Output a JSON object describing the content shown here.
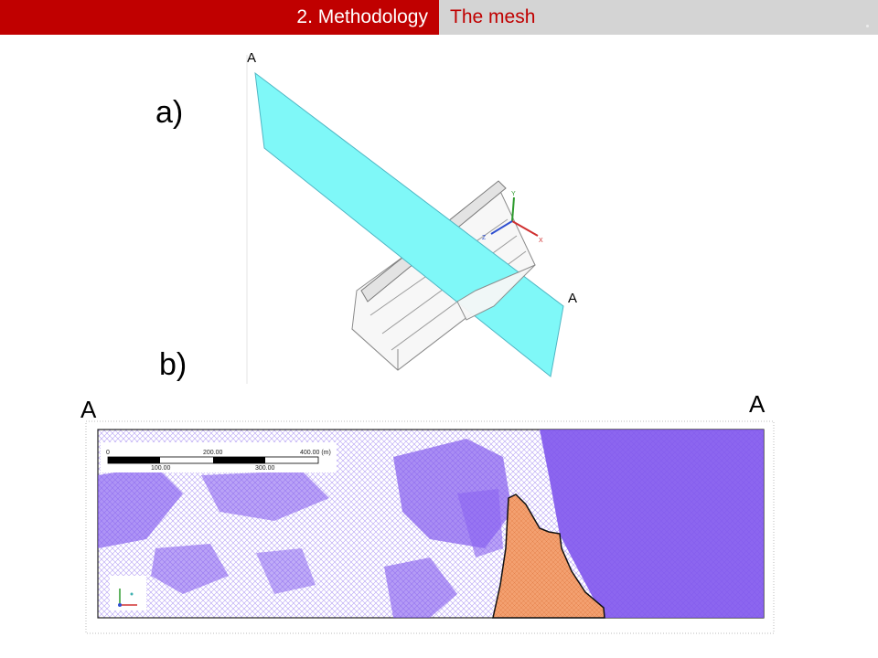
{
  "header": {
    "section": "2. Methodology",
    "subtitle": "The mesh"
  },
  "panels": {
    "a_label": "a)",
    "b_label": "b)"
  },
  "section_markers": {
    "top_start": "A",
    "top_end": "A",
    "mesh_left": "A",
    "mesh_right": "A"
  },
  "axes_3d": {
    "y": "Y",
    "z": "Z",
    "x": "X"
  },
  "scale_bar": {
    "labels_top": [
      "0",
      "200.00",
      "400.00 (m)"
    ],
    "labels_bottom": [
      "100.00",
      "300.00"
    ]
  },
  "colors": {
    "header_red": "#c00000",
    "header_grey": "#d4d4d4",
    "plane_cyan": "#7ff8f8",
    "mesh_purple": "#7f55ee",
    "dam_orange": "#f3a070"
  }
}
